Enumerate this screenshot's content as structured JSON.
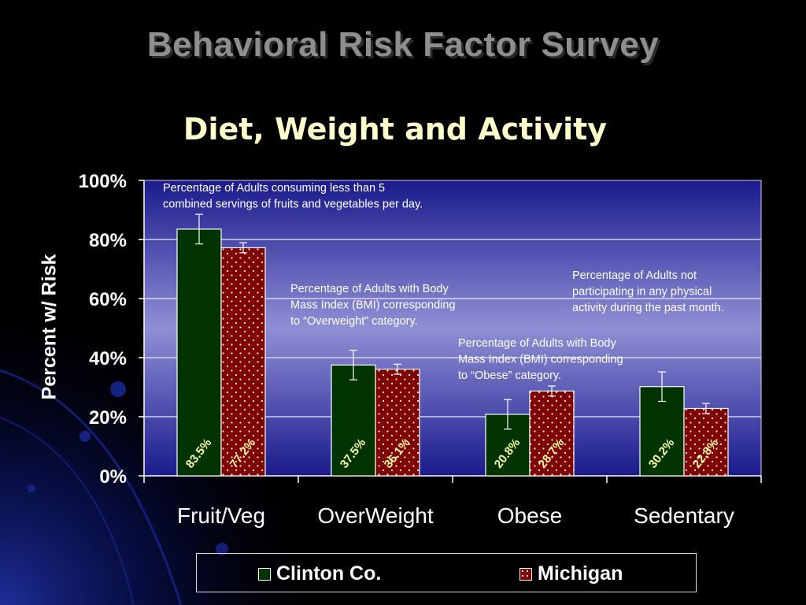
{
  "title": "Behavioral Risk Factor Survey",
  "subtitle": "Diet, Weight and Activity",
  "chart_data": {
    "type": "bar",
    "ylabel": "Percent w/ Risk",
    "xlabel": "",
    "ylim": [
      0,
      100
    ],
    "yticks": [
      "0%",
      "20%",
      "40%",
      "60%",
      "80%",
      "100%"
    ],
    "categories": [
      "Fruit/Veg",
      "OverWeight",
      "Obese",
      "Sedentary"
    ],
    "series": [
      {
        "name": "Clinton Co.",
        "color": "#003300",
        "values": [
          83.5,
          37.5,
          20.8,
          30.2
        ],
        "labels": [
          "83.5%",
          "37.5%",
          "20.8%",
          "30.2%"
        ],
        "error": [
          [
            78.5,
            88.5
          ],
          [
            32.5,
            42.5
          ],
          [
            15.8,
            25.8
          ],
          [
            25.2,
            35.2
          ]
        ]
      },
      {
        "name": "Michigan",
        "color": "#800000",
        "values": [
          77.2,
          36.1,
          28.7,
          22.8
        ],
        "labels": [
          "77.2%",
          "36.1%",
          "28.7%",
          "22.8%"
        ],
        "error": [
          [
            75.5,
            78.9
          ],
          [
            34.4,
            37.8
          ],
          [
            27.0,
            30.4
          ],
          [
            21.1,
            24.5
          ]
        ]
      }
    ],
    "annotations": [
      {
        "lines": [
          "Percentage of Adults consuming less than 5",
          "combined servings of fruits and vegetables per day."
        ]
      },
      {
        "lines": [
          "Percentage of Adults with Body",
          "Mass Index (BMI) corresponding",
          "to “Overweight” category."
        ]
      },
      {
        "lines": [
          "Percentage of Adults with Body",
          "Mass Index (BMI) corresponding",
          "to “Obese” category."
        ]
      },
      {
        "lines": [
          "Percentage of Adults not",
          "participating in any physical",
          "activity during the past month."
        ]
      }
    ],
    "grid": true,
    "legend_position": "bottom"
  }
}
